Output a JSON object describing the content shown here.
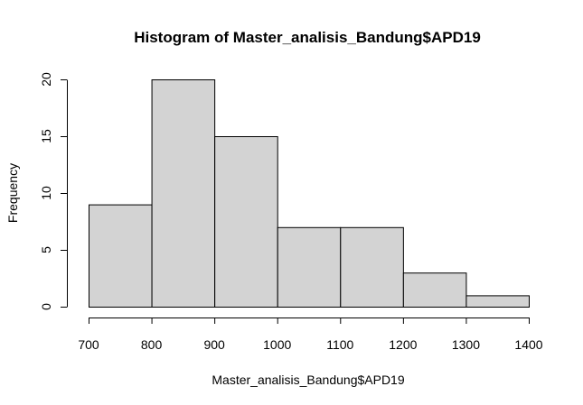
{
  "chart_data": {
    "type": "bar",
    "subtype": "histogram",
    "title": "Histogram of Master_analisis_Bandung$APD19",
    "xlabel": "Master_analisis_Bandung$APD19",
    "ylabel": "Frequency",
    "bins": [
      {
        "from": 700,
        "to": 800,
        "value": 9
      },
      {
        "from": 800,
        "to": 900,
        "value": 20
      },
      {
        "from": 900,
        "to": 1000,
        "value": 15
      },
      {
        "from": 1000,
        "to": 1100,
        "value": 7
      },
      {
        "from": 1100,
        "to": 1200,
        "value": 7
      },
      {
        "from": 1200,
        "to": 1300,
        "value": 3
      },
      {
        "from": 1300,
        "to": 1400,
        "value": 1
      }
    ],
    "xlim": [
      700,
      1400
    ],
    "ylim": [
      0,
      20
    ],
    "x_ticks": [
      "700",
      "800",
      "900",
      "1000",
      "1100",
      "1200",
      "1300",
      "1400"
    ],
    "y_ticks": [
      "0",
      "5",
      "10",
      "15",
      "20"
    ],
    "grid": false,
    "bar_color": "#d3d3d3",
    "border_color": "#000000"
  }
}
